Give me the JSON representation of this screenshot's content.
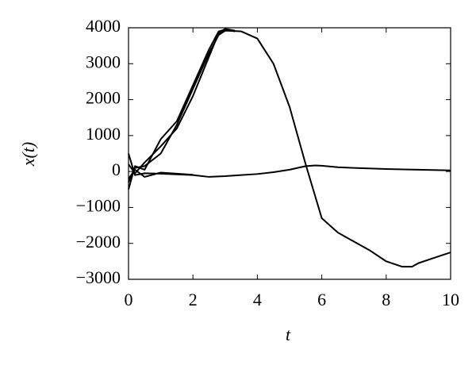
{
  "chart_data": {
    "type": "line",
    "xlabel": "t",
    "ylabel": "x(t)",
    "xlim": [
      0,
      10
    ],
    "xticks": [
      0,
      2,
      4,
      6,
      8,
      10
    ],
    "ylim": [
      -3000,
      4000
    ],
    "yticks": [
      {
        "value": -3000,
        "label": "−3000"
      },
      {
        "value": -2000,
        "label": "−2000"
      },
      {
        "value": -1000,
        "label": "−1000"
      },
      0,
      1000,
      2000,
      3000,
      4000
    ],
    "series": [
      {
        "color": "#000000",
        "x": [
          0,
          0.2,
          0.5,
          1,
          1.5,
          2,
          2.5,
          2.8,
          3,
          3.5,
          4,
          4.5,
          5,
          5.5,
          6,
          6.5,
          7,
          7.5,
          8,
          8.5,
          8.8,
          9,
          9.5,
          10
        ],
        "values": [
          -300,
          100,
          150,
          500,
          1300,
          2300,
          3300,
          3800,
          3920,
          3900,
          3700,
          3000,
          1800,
          200,
          -1300,
          -1700,
          -1950,
          -2200,
          -2500,
          -2650,
          -2650,
          -2550,
          -2400,
          -2250
        ]
      },
      {
        "color": "#000000",
        "x": [
          0,
          0.2,
          0.5,
          1,
          1.5,
          2,
          2.5,
          2.8,
          3,
          3.3
        ],
        "values": [
          200,
          -50,
          250,
          700,
          1200,
          2100,
          3200,
          3850,
          3970,
          3920
        ]
      },
      {
        "color": "#000000",
        "x": [
          0,
          0.2,
          0.5,
          1,
          1.5,
          2,
          2.5,
          2.8,
          3,
          3.3
        ],
        "values": [
          -500,
          150,
          50,
          900,
          1400,
          2400,
          3400,
          3900,
          3950,
          3900
        ]
      },
      {
        "color": "#000000",
        "x": [
          0,
          0.2,
          0.5,
          1,
          1.5,
          2,
          2.5,
          3,
          3.5,
          4,
          4.5,
          5,
          5.5,
          5.8,
          6,
          6.5,
          7,
          8,
          9,
          10
        ],
        "values": [
          500,
          -100,
          -50,
          -60,
          -80,
          -100,
          -150,
          -130,
          -100,
          -70,
          -20,
          50,
          150,
          170,
          160,
          120,
          100,
          70,
          50,
          30
        ]
      },
      {
        "color": "#000000",
        "x": [
          0,
          0.2,
          0.5,
          1,
          1.5,
          2
        ],
        "values": [
          -200,
          50,
          -150,
          -30,
          -60,
          -90
        ]
      }
    ]
  }
}
